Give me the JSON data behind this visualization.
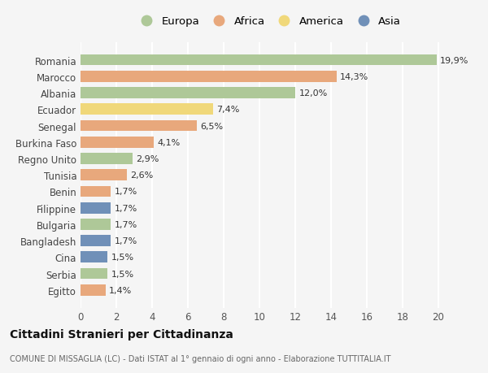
{
  "countries": [
    "Romania",
    "Marocco",
    "Albania",
    "Ecuador",
    "Senegal",
    "Burkina Faso",
    "Regno Unito",
    "Tunisia",
    "Benin",
    "Filippine",
    "Bulgaria",
    "Bangladesh",
    "Cina",
    "Serbia",
    "Egitto"
  ],
  "values": [
    19.9,
    14.3,
    12.0,
    7.4,
    6.5,
    4.1,
    2.9,
    2.6,
    1.7,
    1.7,
    1.7,
    1.7,
    1.5,
    1.5,
    1.4
  ],
  "labels": [
    "19,9%",
    "14,3%",
    "12,0%",
    "7,4%",
    "6,5%",
    "4,1%",
    "2,9%",
    "2,6%",
    "1,7%",
    "1,7%",
    "1,7%",
    "1,7%",
    "1,5%",
    "1,5%",
    "1,4%"
  ],
  "categories": [
    "Europa",
    "Africa",
    "America",
    "Asia"
  ],
  "bar_colors": [
    "#aec898",
    "#e8a87c",
    "#aec898",
    "#f0d87a",
    "#e8a87c",
    "#e8a87c",
    "#aec898",
    "#e8a87c",
    "#e8a87c",
    "#7090b8",
    "#aec898",
    "#7090b8",
    "#7090b8",
    "#aec898",
    "#e8a87c"
  ],
  "legend_colors": [
    "#aec898",
    "#e8a87c",
    "#f0d87a",
    "#7090b8"
  ],
  "title": "Cittadini Stranieri per Cittadinanza",
  "subtitle": "COMUNE DI MISSAGLIA (LC) - Dati ISTAT al 1° gennaio di ogni anno - Elaborazione TUTTITALIA.IT",
  "xlim": [
    0,
    21
  ],
  "xticks": [
    0,
    2,
    4,
    6,
    8,
    10,
    12,
    14,
    16,
    18,
    20
  ],
  "bg_color": "#f5f5f5",
  "grid_color": "#ffffff",
  "bar_alpha": 1.0,
  "bar_height": 0.68
}
